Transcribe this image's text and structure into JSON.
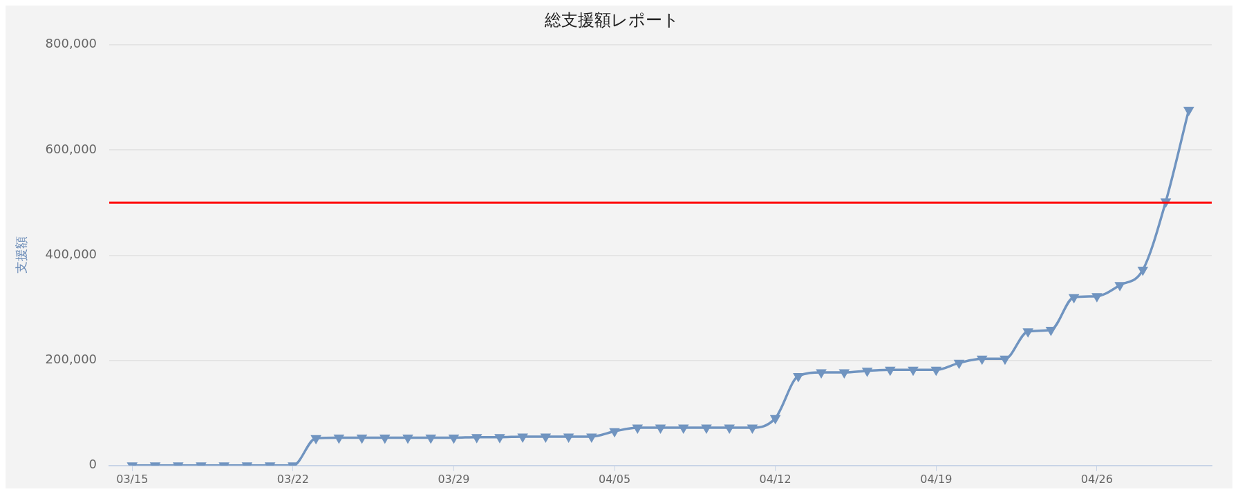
{
  "chart_data": {
    "type": "line",
    "title": "総支援額レポート",
    "ylabel": "支援額",
    "x": [
      "--03-15",
      "--03-16",
      "--03-17",
      "--03-18",
      "--03-19",
      "--03-20",
      "--03-21",
      "--03-22",
      "--03-23",
      "--03-24",
      "--03-25",
      "--03-26",
      "--03-27",
      "--03-28",
      "--03-29",
      "--03-30",
      "--03-31",
      "--04-01",
      "--04-02",
      "--04-03",
      "--04-04",
      "--04-05",
      "--04-06",
      "--04-07",
      "--04-08",
      "--04-09",
      "--04-10",
      "--04-11",
      "--04-12",
      "--04-13",
      "--04-14",
      "--04-15",
      "--04-16",
      "--04-17",
      "--04-18",
      "--04-19",
      "--04-20",
      "--04-21",
      "--04-22",
      "--04-23",
      "--04-24",
      "--04-25",
      "--04-26",
      "--04-27",
      "--04-28",
      "--04-29",
      "--04-30"
    ],
    "series": [
      {
        "color": "#7094c0",
        "values": [
          0,
          0,
          0,
          0,
          0,
          0,
          0,
          0,
          52000,
          53000,
          53000,
          53000,
          53000,
          53000,
          53000,
          54000,
          54000,
          55000,
          55000,
          55000,
          55000,
          65000,
          72000,
          72000,
          72000,
          72000,
          72000,
          72000,
          90000,
          170000,
          177000,
          177000,
          180000,
          182000,
          182000,
          182000,
          195000,
          203000,
          203000,
          255000,
          258000,
          320000,
          322000,
          343000,
          372000,
          502000,
          676000
        ]
      }
    ],
    "xlim": [
      "--03-14",
      "--05-01"
    ],
    "xticks": [
      {
        "value": "--03-15",
        "label": "03/15"
      },
      {
        "value": "--03-22",
        "label": "03/22"
      },
      {
        "value": "--03-29",
        "label": "03/29"
      },
      {
        "value": "--04-05",
        "label": "04/05"
      },
      {
        "value": "--04-12",
        "label": "04/12"
      },
      {
        "value": "--04-19",
        "label": "04/19"
      },
      {
        "value": "--04-26",
        "label": "04/26"
      }
    ],
    "ylim": [
      0,
      800000
    ],
    "yticks": [
      {
        "value": 0,
        "label": "0"
      },
      {
        "value": 200000,
        "label": "200,000"
      },
      {
        "value": 400000,
        "label": "400,000"
      },
      {
        "value": 600000,
        "label": "600,000"
      },
      {
        "value": 800000,
        "label": "800,000"
      }
    ],
    "ref_lines": [
      {
        "axis": "y",
        "value": 500000,
        "color": "#ff0000"
      }
    ],
    "grid": "y",
    "legend": false,
    "marker": "triangle",
    "line_style": "solid"
  }
}
